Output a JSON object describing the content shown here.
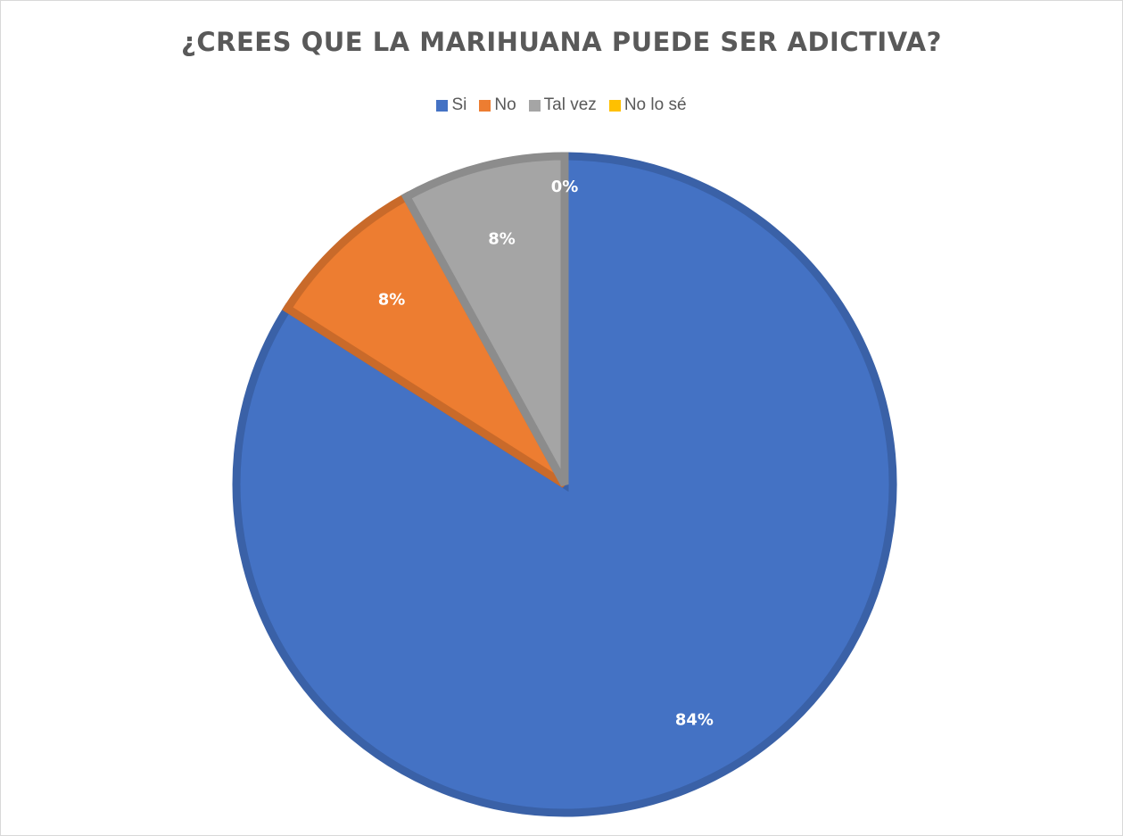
{
  "chart_data": {
    "type": "pie",
    "title": "¿CREES QUE LA MARIHUANA PUEDE SER ADICTIVA?",
    "legend_position": "top",
    "categories": [
      "Si",
      "No",
      "Tal vez",
      "No lo sé"
    ],
    "values": [
      84,
      8,
      8,
      0
    ],
    "labels": [
      "84%",
      "8%",
      "8%",
      "0%"
    ],
    "colors": [
      "#4472C4",
      "#ED7D31",
      "#A5A5A5",
      "#FFC000"
    ]
  }
}
